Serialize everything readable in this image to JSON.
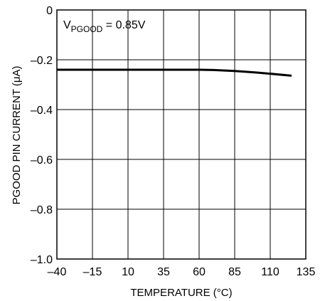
{
  "chart_data": {
    "type": "line",
    "title": "",
    "xlabel": "TEMPERATURE (°C)",
    "ylabel": "PGOOD PIN CURRENT (μA)",
    "xlim": [
      -40,
      135
    ],
    "ylim": [
      -1.0,
      0
    ],
    "x_ticks": [
      -40,
      -15,
      10,
      35,
      60,
      85,
      110,
      135
    ],
    "y_ticks": [
      0,
      -0.2,
      -0.4,
      -0.6,
      -0.8,
      -1.0
    ],
    "x_tick_labels": [
      "–40",
      "–15",
      "10",
      "35",
      "60",
      "85",
      "110",
      "135"
    ],
    "y_tick_labels": [
      "0",
      "–0.2",
      "–0.4",
      "–0.6",
      "–0.8",
      "–1.0"
    ],
    "grid": true,
    "annotation": {
      "prefix": "V",
      "subscript": "PGOOD",
      "suffix": " = 0.85V"
    },
    "series": [
      {
        "x": [
          -40,
          -15,
          10,
          35,
          60,
          70,
          85,
          100,
          110,
          125
        ],
        "y": [
          -0.24,
          -0.24,
          -0.24,
          -0.24,
          -0.24,
          -0.241,
          -0.245,
          -0.251,
          -0.256,
          -0.264
        ]
      }
    ]
  }
}
